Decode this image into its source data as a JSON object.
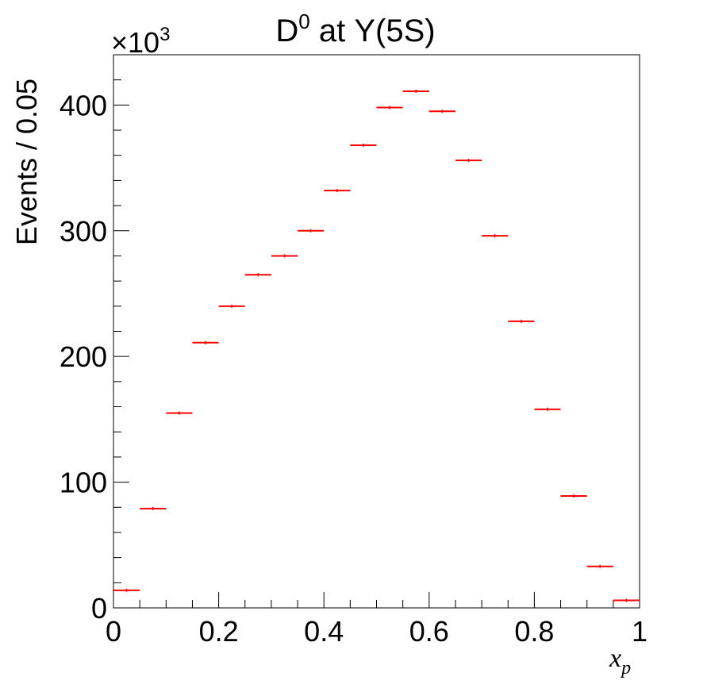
{
  "chart_data": {
    "type": "scatter",
    "title_main": "D",
    "title_sup": "0",
    "title_rest": " at Υ(5S)",
    "ylabel": "Events / 0.05",
    "xlabel": "x",
    "xlabel_sub": "p",
    "yexp_prefix": "×10",
    "yexp_sup": "3",
    "xlim": [
      0,
      1
    ],
    "ylim": [
      0,
      440
    ],
    "x_ticks": [
      "0",
      "0.2",
      "0.4",
      "0.6",
      "0.8",
      "1"
    ],
    "y_ticks": [
      "0",
      "100",
      "200",
      "300",
      "400"
    ],
    "grid": false,
    "legend": "none",
    "marker_color": "#ff0000",
    "bin_width": 0.05,
    "bins": [
      {
        "x": 0.025,
        "y": 14
      },
      {
        "x": 0.075,
        "y": 79
      },
      {
        "x": 0.125,
        "y": 155
      },
      {
        "x": 0.175,
        "y": 211
      },
      {
        "x": 0.225,
        "y": 240
      },
      {
        "x": 0.275,
        "y": 265
      },
      {
        "x": 0.325,
        "y": 280
      },
      {
        "x": 0.375,
        "y": 300
      },
      {
        "x": 0.425,
        "y": 332
      },
      {
        "x": 0.475,
        "y": 368
      },
      {
        "x": 0.525,
        "y": 398
      },
      {
        "x": 0.575,
        "y": 411
      },
      {
        "x": 0.625,
        "y": 395
      },
      {
        "x": 0.675,
        "y": 356
      },
      {
        "x": 0.725,
        "y": 296
      },
      {
        "x": 0.775,
        "y": 228
      },
      {
        "x": 0.825,
        "y": 158
      },
      {
        "x": 0.875,
        "y": 89
      },
      {
        "x": 0.925,
        "y": 33
      },
      {
        "x": 0.975,
        "y": 6
      }
    ]
  }
}
